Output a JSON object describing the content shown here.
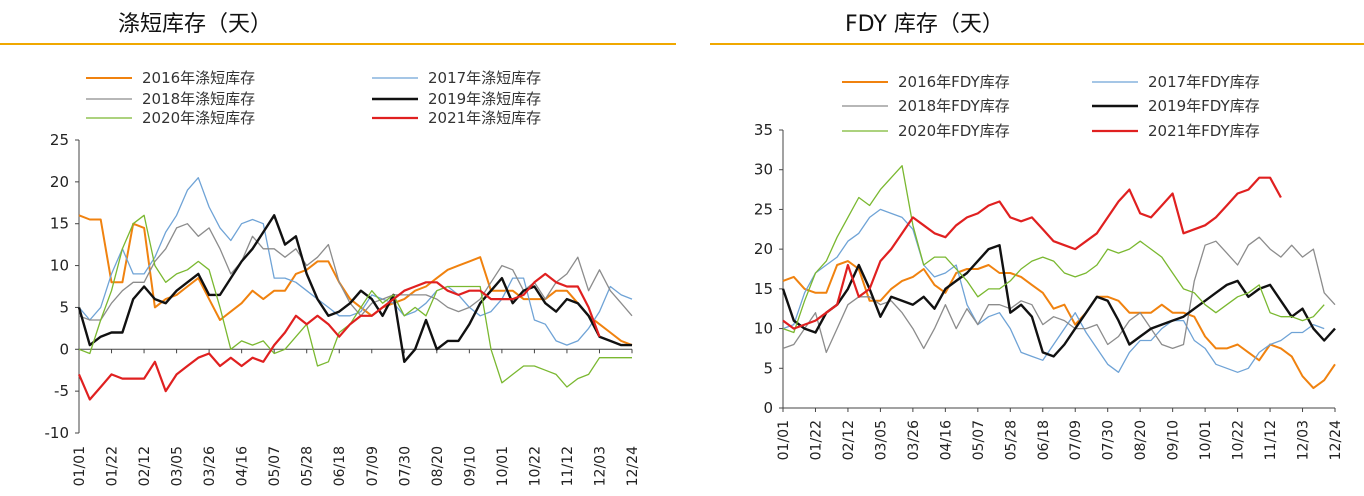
{
  "colors": {
    "s2016": "#f0820f",
    "s2017": "#6fa3d6",
    "s2018": "#8c8c8c",
    "s2019": "#111111",
    "s2020": "#7ab830",
    "s2021": "#e02020",
    "title_rule": "#f0a800"
  },
  "chart_data": [
    {
      "type": "line",
      "title": "涤短库存（天）",
      "xlabel": "",
      "ylabel": "",
      "ylim": [
        -10,
        25
      ],
      "yticks": [
        -10,
        -5,
        0,
        5,
        10,
        15,
        20,
        25
      ],
      "x_tick_labels": [
        "01/01",
        "01/22",
        "02/12",
        "03/05",
        "03/26",
        "04/16",
        "05/07",
        "05/28",
        "06/18",
        "07/09",
        "07/30",
        "08/20",
        "09/10",
        "10/01",
        "10/22",
        "11/12",
        "12/03",
        "12/24"
      ],
      "n_points": 52,
      "series": [
        {
          "name": "2016年涤短库存",
          "key": "s2016",
          "width": 2,
          "values": [
            16,
            15.5,
            15.5,
            8,
            8,
            15,
            14.5,
            5,
            6,
            6.5,
            7.5,
            8.5,
            6,
            3.5,
            4.5,
            5.5,
            7,
            6,
            7,
            7,
            9,
            9.5,
            10.5,
            10.5,
            8,
            6,
            5,
            4,
            5,
            5.5,
            6,
            7,
            7.5,
            8.5,
            9.5,
            10,
            10.5,
            11,
            7,
            7,
            7,
            6,
            6,
            6,
            7,
            7,
            5.5,
            4,
            3,
            2,
            1,
            0.5
          ]
        },
        {
          "name": "2017年涤短库存",
          "key": "s2017",
          "width": 1.3,
          "values": [
            5,
            3.5,
            5,
            9,
            12,
            9,
            9,
            11,
            14,
            16,
            19,
            20.5,
            17,
            14.5,
            13,
            15,
            15.5,
            15,
            8.5,
            8.5,
            8,
            7,
            6,
            5,
            4,
            4,
            4.5,
            6.5,
            6,
            5.5,
            4,
            4.5,
            5.5,
            7,
            7.5,
            6.5,
            5,
            4,
            4.5,
            6,
            8.5,
            8.5,
            3.5,
            3,
            1,
            0.5,
            1,
            2.5,
            4.5,
            7.5,
            6.5,
            6
          ]
        },
        {
          "name": "2018年涤短库存",
          "key": "s2018",
          "width": 1.3,
          "values": [
            4,
            3.5,
            3.5,
            5.5,
            7,
            8,
            8,
            10.5,
            12,
            14.5,
            15,
            13.5,
            14.5,
            12,
            9,
            10.5,
            13.5,
            12,
            12,
            11,
            12,
            10,
            11,
            12.5,
            8,
            5.5,
            4,
            5.5,
            6,
            6.5,
            6.5,
            6.5,
            6.5,
            6,
            5,
            4.5,
            5,
            6,
            8,
            10,
            9.5,
            7,
            8,
            6,
            8,
            9,
            11,
            7,
            9.5,
            7,
            5.5,
            4
          ]
        },
        {
          "name": "2019年涤短库存",
          "key": "s2019",
          "width": 2.4,
          "values": [
            5,
            0.5,
            1.5,
            2,
            2,
            6,
            7.5,
            6,
            5.5,
            7,
            8,
            9,
            6.5,
            6.5,
            8.5,
            10.5,
            12,
            14,
            16,
            12.5,
            13.5,
            9,
            6,
            4,
            4.5,
            5.5,
            7,
            6,
            4,
            6.5,
            -1.5,
            0,
            3.5,
            0,
            1,
            1,
            3,
            5.5,
            7,
            8.5,
            5.5,
            7,
            7.5,
            5.5,
            4.5,
            6,
            5.5,
            4,
            1.5,
            1,
            0.5,
            0.5
          ]
        },
        {
          "name": "2020年涤短库存",
          "key": "s2020",
          "width": 1.3,
          "values": [
            0,
            -0.5,
            3.5,
            7,
            12,
            15,
            16,
            10,
            8,
            9,
            9.5,
            10.5,
            9.5,
            5,
            0,
            1,
            0.5,
            1,
            -0.5,
            0,
            1.5,
            3,
            -2,
            -1.5,
            2,
            3,
            5,
            7,
            5.5,
            6.5,
            4,
            5,
            4,
            7,
            7.5,
            7.5,
            7.5,
            7.5,
            0,
            -4,
            -3,
            -2,
            -2,
            -2.5,
            -3,
            -4.5,
            -3.5,
            -3,
            -1,
            -1,
            -1,
            -1
          ]
        },
        {
          "name": "2021年涤短库存",
          "key": "s2021",
          "width": 2.2,
          "values": [
            -3,
            -6,
            -4.5,
            -3,
            -3.5,
            -3.5,
            -3.5,
            -1.5,
            -5,
            -3,
            -2,
            -1,
            -0.5,
            -2,
            -1,
            -2,
            -1,
            -1.5,
            0.5,
            2,
            4,
            3,
            4,
            3,
            1.5,
            3,
            4,
            4,
            5,
            6,
            7,
            7.5,
            8,
            8,
            7,
            6.5,
            7,
            7,
            6,
            6,
            6,
            6.5,
            8,
            9,
            8,
            7.5,
            7.5,
            5,
            1.5
          ]
        }
      ],
      "legend": {
        "placement": "top",
        "columns": 2,
        "order": [
          "s2016",
          "s2017",
          "s2018",
          "s2019",
          "s2020",
          "s2021"
        ],
        "labels": [
          "2016年涤短库存",
          "2017年涤短库存",
          "2018年涤短库存",
          "2019年涤短库存",
          "2020年涤短库存",
          "2021年涤短库存"
        ]
      }
    },
    {
      "type": "line",
      "title": "FDY 库存（天）",
      "xlabel": "",
      "ylabel": "",
      "ylim": [
        0,
        35
      ],
      "yticks": [
        0,
        5,
        10,
        15,
        20,
        25,
        30,
        35
      ],
      "x_tick_labels": [
        "01/01",
        "01/22",
        "02/12",
        "03/05",
        "03/26",
        "04/16",
        "05/07",
        "05/28",
        "06/18",
        "07/09",
        "07/30",
        "08/20",
        "09/10",
        "10/01",
        "10/22",
        "11/12",
        "12/03",
        "12/24"
      ],
      "n_points": 52,
      "series": [
        {
          "name": "2016年FDY库存",
          "key": "s2016",
          "width": 2,
          "values": [
            16,
            16.5,
            15,
            14.5,
            14.5,
            18,
            18.5,
            17.5,
            13.5,
            13.5,
            15,
            16,
            16.5,
            17.5,
            15.5,
            14.5,
            17,
            17.5,
            17.5,
            18,
            17,
            17,
            16.5,
            15.5,
            14.5,
            12.5,
            13,
            10.5,
            12,
            14,
            14,
            13.5,
            12,
            12,
            12,
            13,
            12,
            12,
            11.5,
            9,
            7.5,
            7.5,
            8,
            7,
            6,
            8,
            7.5,
            6.5,
            4,
            2.5,
            3.5,
            5.5
          ]
        },
        {
          "name": "2017年FDY库存",
          "key": "s2017",
          "width": 1.3,
          "values": [
            10,
            10.5,
            14.5,
            17,
            18,
            19,
            21,
            22,
            24,
            25,
            24.5,
            24,
            22.5,
            18,
            16.5,
            17,
            18,
            13,
            10.5,
            11.5,
            12,
            10,
            7,
            6.5,
            6,
            8,
            10,
            12,
            9.5,
            7.5,
            5.5,
            4.5,
            7,
            8.5,
            8.5,
            10,
            11,
            11,
            8.5,
            7.5,
            5.5,
            5,
            4.5,
            5,
            7,
            8,
            8.5,
            9.5,
            9.5,
            10.5,
            10
          ]
        },
        {
          "name": "2018年FDY库存",
          "key": "s2018",
          "width": 1.3,
          "values": [
            7.5,
            8,
            10,
            12,
            7,
            10,
            13,
            14,
            14,
            13,
            13.5,
            12,
            10,
            7.5,
            10,
            13,
            10,
            12.5,
            10.5,
            13,
            13,
            12.5,
            13.5,
            13,
            10.5,
            11.5,
            11,
            10,
            10,
            10.5,
            8,
            9,
            11,
            12,
            10,
            8,
            7.5,
            8,
            16,
            20.5,
            21,
            19.5,
            18,
            20.5,
            21.5,
            20,
            19,
            20.5,
            19,
            20,
            14.5,
            13
          ]
        },
        {
          "name": "2019年FDY库存",
          "key": "s2019",
          "width": 2.4,
          "values": [
            15,
            11,
            10,
            9.5,
            12,
            13,
            15,
            18,
            15,
            11.5,
            14,
            13.5,
            13,
            14,
            12.5,
            15,
            16,
            17,
            18.5,
            20,
            20.5,
            12,
            13,
            11.5,
            7,
            6.5,
            8,
            10,
            12,
            14,
            13.5,
            11,
            8,
            9,
            10,
            10.5,
            11,
            11.5,
            12.5,
            13.5,
            14.5,
            15.5,
            16,
            14,
            15,
            15.5,
            13.5,
            11.5,
            12.5,
            10,
            8.5,
            10
          ]
        },
        {
          "name": "2020年FDY库存",
          "key": "s2020",
          "width": 1.3,
          "values": [
            10,
            9.5,
            13.5,
            17,
            18.5,
            21.5,
            24,
            26.5,
            25.5,
            27.5,
            29,
            30.5,
            23,
            18,
            19,
            19,
            17.5,
            16,
            14,
            15,
            15,
            16,
            17.5,
            18.5,
            19,
            18.5,
            17,
            16.5,
            17,
            18,
            20,
            19.5,
            20,
            21,
            20,
            19,
            17,
            15,
            14.5,
            13,
            12,
            13,
            14,
            14.5,
            15.5,
            12,
            11.5,
            11.5,
            11,
            11.5,
            13
          ]
        },
        {
          "name": "2021年FDY库存",
          "key": "s2021",
          "width": 2.2,
          "values": [
            11,
            10,
            10.5,
            11,
            12,
            13,
            18,
            14,
            15,
            18.5,
            20,
            22,
            24,
            23,
            22,
            21.5,
            23,
            24,
            24.5,
            25.5,
            26,
            24,
            23.5,
            24,
            22.5,
            21,
            20.5,
            20,
            21,
            22,
            24,
            26,
            27.5,
            24.5,
            24,
            25.5,
            27,
            22,
            22.5,
            23,
            24,
            25.5,
            27,
            27.5,
            29,
            29,
            26.5
          ]
        }
      ],
      "legend": {
        "placement": "top",
        "columns": 2,
        "order": [
          "s2016",
          "s2017",
          "s2018",
          "s2019",
          "s2020",
          "s2021"
        ],
        "labels": [
          "2016年FDY库存",
          "2017年FDY库存",
          "2018年FDY库存",
          "2019年FDY库存",
          "2020年FDY库存",
          "2021年FDY库存"
        ]
      }
    }
  ]
}
